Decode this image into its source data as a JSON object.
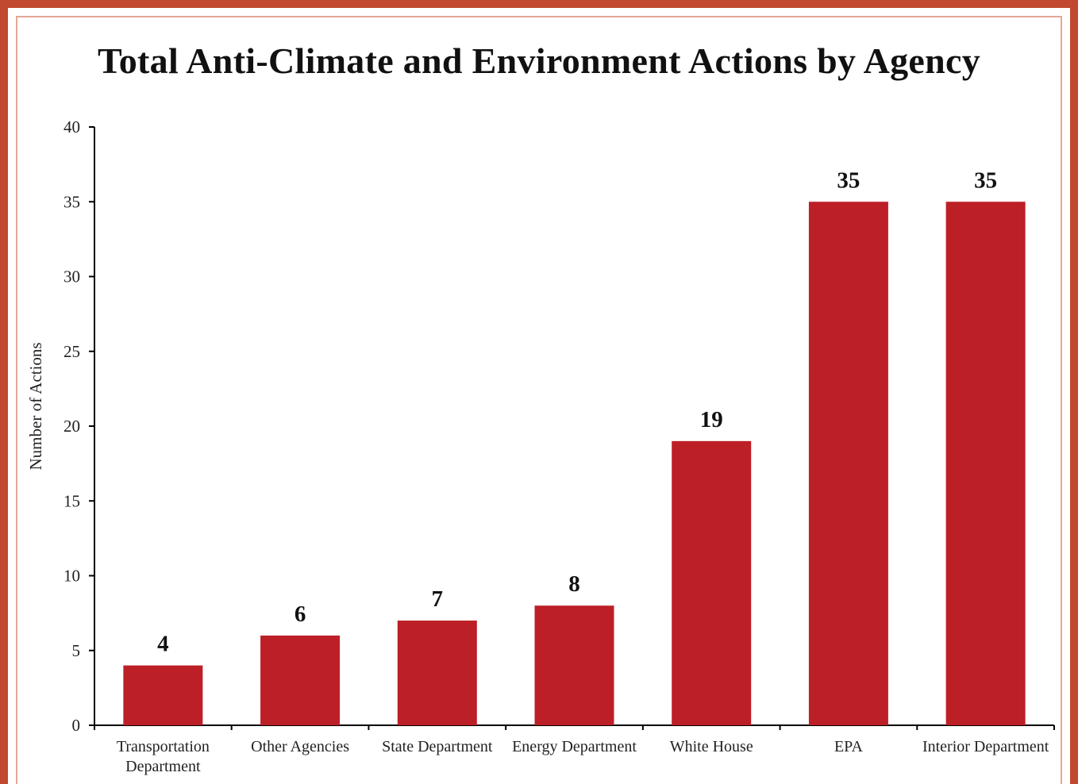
{
  "title": "Total Anti-Climate and Environment Actions by Agency",
  "chart_data": {
    "type": "bar",
    "title": "Total Anti-Climate and Environment Actions by Agency",
    "xlabel": "",
    "ylabel": "Number of Actions",
    "categories": [
      [
        "Transportation",
        "Department"
      ],
      [
        "Other Agencies"
      ],
      [
        "State Department"
      ],
      [
        "Energy Department"
      ],
      [
        "White House"
      ],
      [
        "EPA"
      ],
      [
        "Interior Department"
      ]
    ],
    "values": [
      4,
      6,
      7,
      8,
      19,
      35,
      35
    ],
    "data_labels": [
      "4",
      "6",
      "7",
      "8",
      "19",
      "35",
      "35"
    ],
    "ylim": [
      0,
      40
    ],
    "yticks": [
      "0",
      "5",
      "10",
      "15",
      "20",
      "25",
      "30",
      "35",
      "40"
    ],
    "grid": false,
    "legend": "none",
    "bar_color": "#bd1f27"
  }
}
